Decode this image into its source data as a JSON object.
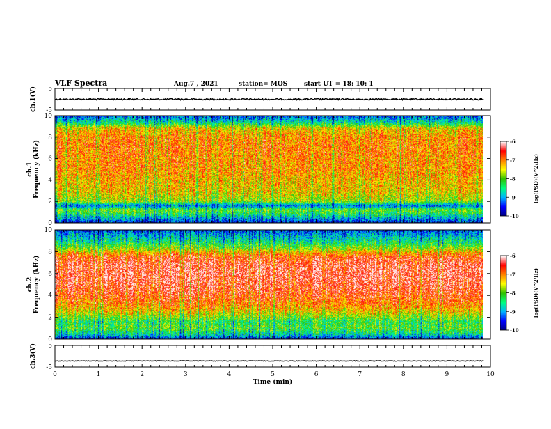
{
  "header": {
    "title": "VLF Spectra",
    "date": "Aug.7 , 2021",
    "station": "station= MOS",
    "start": "start UT = 18: 10: 1"
  },
  "chart_data": [
    {
      "type": "line",
      "ylabel": "ch.1(V)",
      "xlim": [
        0,
        10
      ],
      "ylim": [
        -5,
        5
      ],
      "yticks": [
        5,
        -5
      ],
      "series": [
        {
          "x": [
            0,
            9.83
          ],
          "values": [
            0,
            0
          ]
        }
      ]
    },
    {
      "type": "heatmap",
      "ylabel": "ch.1\nFrequency (kHz)",
      "xlim": [
        0,
        10
      ],
      "ylim": [
        0,
        10
      ],
      "yticks": [
        0,
        2,
        4,
        6,
        8,
        10
      ],
      "data_xmax": 9.83,
      "colorbar": {
        "label": "log(PSD)(V^2/Hz)",
        "ticks": [
          -6,
          -7,
          -8,
          -9,
          -10
        ],
        "range": [
          -10,
          -6
        ]
      },
      "frequency_profile_log_psd": [
        [
          0.0,
          -9.5
        ],
        [
          0.4,
          -8.9
        ],
        [
          0.8,
          -8.3
        ],
        [
          1.2,
          -7.9
        ],
        [
          1.6,
          -9.1
        ],
        [
          2.0,
          -7.7
        ],
        [
          3.0,
          -7.3
        ],
        [
          4.0,
          -7.2
        ],
        [
          5.0,
          -7.0
        ],
        [
          6.0,
          -7.0
        ],
        [
          7.0,
          -6.9
        ],
        [
          8.0,
          -7.0
        ],
        [
          8.8,
          -7.3
        ],
        [
          9.2,
          -8.2
        ],
        [
          9.6,
          -8.8
        ],
        [
          10.0,
          -9.3
        ]
      ]
    },
    {
      "type": "heatmap",
      "ylabel": "ch.2\nFrequency (kHz)",
      "xlim": [
        0,
        10
      ],
      "ylim": [
        0,
        10
      ],
      "yticks": [
        0,
        2,
        4,
        6,
        8,
        10
      ],
      "data_xmax": 9.83,
      "colorbar": {
        "label": "log(PSD)(V^2/Hz)",
        "ticks": [
          -6,
          -7,
          -8,
          -9,
          -10
        ],
        "range": [
          -10,
          -6
        ]
      },
      "frequency_profile_log_psd": [
        [
          0.0,
          -9.5
        ],
        [
          0.4,
          -8.6
        ],
        [
          1.0,
          -8.0
        ],
        [
          1.6,
          -8.2
        ],
        [
          2.2,
          -7.6
        ],
        [
          3.0,
          -7.0
        ],
        [
          4.0,
          -6.6
        ],
        [
          5.0,
          -6.4
        ],
        [
          6.0,
          -6.3
        ],
        [
          7.0,
          -6.4
        ],
        [
          7.6,
          -6.7
        ],
        [
          8.2,
          -7.6
        ],
        [
          8.8,
          -8.3
        ],
        [
          9.4,
          -8.8
        ],
        [
          10.0,
          -9.3
        ]
      ]
    },
    {
      "type": "line",
      "ylabel": "ch.3(V)",
      "xlabel": "Time (min)",
      "xlim": [
        0,
        10
      ],
      "ylim": [
        -5,
        5
      ],
      "yticks": [
        5,
        -5
      ],
      "xticks": [
        0,
        1,
        2,
        3,
        4,
        5,
        6,
        7,
        8,
        9,
        10
      ],
      "series": [
        {
          "x": [
            0,
            9.83
          ],
          "values": [
            -2.2,
            -2.2
          ]
        }
      ]
    }
  ],
  "colors": {
    "colormap": [
      "#000080",
      "#0000ff",
      "#00b4ff",
      "#00ff80",
      "#30c000",
      "#ffff00",
      "#ff8000",
      "#ff0000",
      "#ffffff"
    ]
  }
}
